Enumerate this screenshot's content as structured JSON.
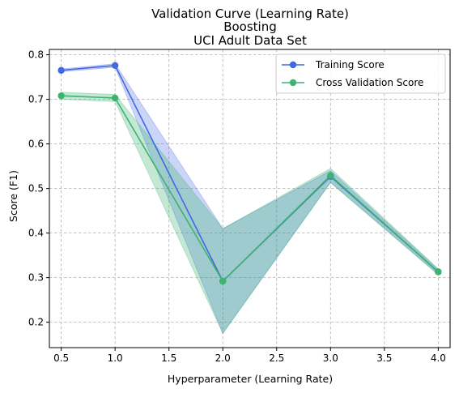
{
  "chart_data": {
    "type": "line",
    "title_lines": [
      "Validation Curve (Learning Rate)",
      "Boosting",
      "UCI Adult Data Set"
    ],
    "xlabel": "Hyperparameter (Learning Rate)",
    "ylabel": "Score (F1)",
    "xlim": [
      0.39,
      4.11
    ],
    "ylim": [
      0.143,
      0.812
    ],
    "xticks": [
      0.5,
      1.0,
      1.5,
      2.0,
      2.5,
      3.0,
      3.5,
      4.0
    ],
    "xtick_labels": [
      "0.5",
      "1.0",
      "1.5",
      "2.0",
      "2.5",
      "3.0",
      "3.5",
      "4.0"
    ],
    "yticks": [
      0.2,
      0.3,
      0.4,
      0.5,
      0.6,
      0.7,
      0.8
    ],
    "ytick_labels": [
      "0.2",
      "0.3",
      "0.4",
      "0.5",
      "0.6",
      "0.7",
      "0.8"
    ],
    "grid": true,
    "legend_position": "top-right",
    "x": [
      0.5,
      1.0,
      2.0,
      3.0,
      4.0
    ],
    "series": [
      {
        "name": "Training Score",
        "color": "#4169e1",
        "values": [
          0.765,
          0.776,
          0.292,
          0.527,
          0.313
        ],
        "band_upper": [
          0.768,
          0.78,
          0.41,
          0.54,
          0.318
        ],
        "band_lower": [
          0.762,
          0.772,
          0.175,
          0.514,
          0.308
        ]
      },
      {
        "name": "Cross Validation Score",
        "color": "#3cb371",
        "values": [
          0.708,
          0.703,
          0.292,
          0.529,
          0.313
        ],
        "band_upper": [
          0.716,
          0.711,
          0.41,
          0.545,
          0.32
        ],
        "band_lower": [
          0.7,
          0.695,
          0.175,
          0.513,
          0.306
        ]
      }
    ]
  }
}
